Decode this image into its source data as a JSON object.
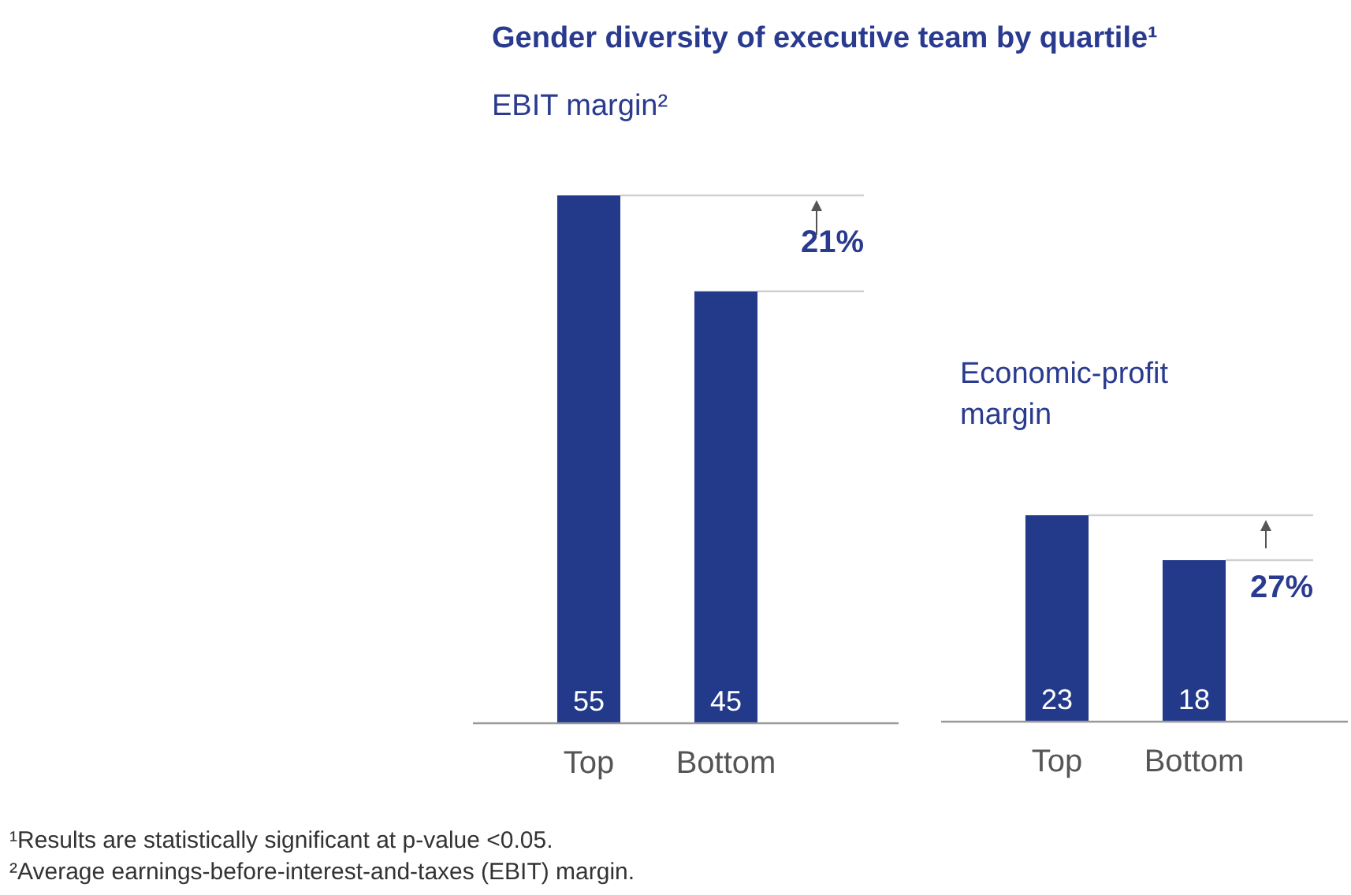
{
  "chart_data": [
    {
      "type": "bar",
      "title": "Gender diversity of executive team by quartile¹",
      "subtitle": "EBIT margin²",
      "categories": [
        "Top",
        "Bottom"
      ],
      "values": [
        55,
        45
      ],
      "color": "#233a8b",
      "data_labels": true,
      "legend": false,
      "grid": false,
      "ref_lines": [
        {
          "axis": "y",
          "value": 55,
          "color": "#d0d0d0"
        },
        {
          "axis": "y",
          "value": 45,
          "color": "#d0d0d0"
        }
      ],
      "annotations": [
        "21%",
        "¹Results are statistically significant at p-value <0.05.",
        "²Average earnings-before-interest-and-taxes (EBIT) margin."
      ]
    },
    {
      "type": "bar",
      "subtitle": "Economic-profit margin",
      "categories": [
        "Top",
        "Bottom"
      ],
      "values": [
        23,
        18
      ],
      "color": "#233a8b",
      "data_labels": true,
      "legend": false,
      "grid": false,
      "ref_lines": [
        {
          "axis": "y",
          "value": 23,
          "color": "#d0d0d0"
        },
        {
          "axis": "y",
          "value": 18,
          "color": "#d0d0d0"
        }
      ],
      "annotations": [
        "27%"
      ]
    }
  ]
}
